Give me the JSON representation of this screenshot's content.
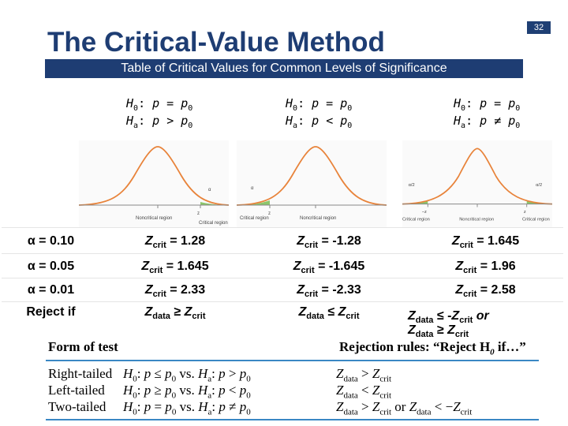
{
  "slide_number": "32",
  "title": "The Critical-Value Method",
  "subtitle": "Table of Critical Values for Common Levels of Significance",
  "columns": [
    {
      "h0": "p = p",
      "ha": "p > p",
      "ha_sym": ">"
    },
    {
      "h0": "p = p",
      "ha": "p < p",
      "ha_sym": "<"
    },
    {
      "h0": "p = p",
      "ha": "p ≠ p",
      "ha_sym": "≠"
    }
  ],
  "hyp_labels": {
    "h": "H",
    "zero": "0",
    "a": "a",
    "p": "p",
    "colon": ":"
  },
  "curve_labels": {
    "alpha": "α",
    "alpha_half": "α/2",
    "critical_region": "Critical region",
    "noncritical_region": "Noncritical region",
    "zcrit": "z",
    "neg_zcrit": "−z",
    "crit_sub": "crit"
  },
  "rows": [
    {
      "label": "α = 0.10",
      "values": [
        "= 1.28",
        "= -1.28",
        "= 1.645"
      ]
    },
    {
      "label": "α = 0.05",
      "values": [
        "= 1.645",
        "= -1.645",
        "= 1.96"
      ]
    },
    {
      "label": "α = 0.01",
      "values": [
        "= 2.33",
        "= -2.33",
        "= 2.58"
      ]
    }
  ],
  "z": "Z",
  "crit": "crit",
  "data": "data",
  "reject_row": {
    "label": "Reject if",
    "right": "≥",
    "left": "≤",
    "two_a": "≤ -",
    "two_or": "or",
    "two_b": "≥"
  },
  "rules": {
    "form_header": "Form of test",
    "rejection_header": "Rejection rules: “Reject H",
    "rejection_header_tail": " if…”",
    "zero": "0",
    "items": [
      {
        "form": "Right-tailed",
        "hyp": "H: p ≤ p vs. H: p > p",
        "rule": "Z > Z"
      },
      {
        "form": "Left-tailed",
        "hyp": "H: p ≥ p vs. H: p < p",
        "rule": "Z < Z"
      },
      {
        "form": "Two-tailed",
        "hyp": "H: p = p vs. H: p ≠ p",
        "rule": "Z > Z or Z < −Z"
      }
    ]
  },
  "colors": {
    "accent": "#1e3d73",
    "rule_line": "#3a87c4",
    "region": "#8cc56a",
    "curve": "#e8833a"
  }
}
